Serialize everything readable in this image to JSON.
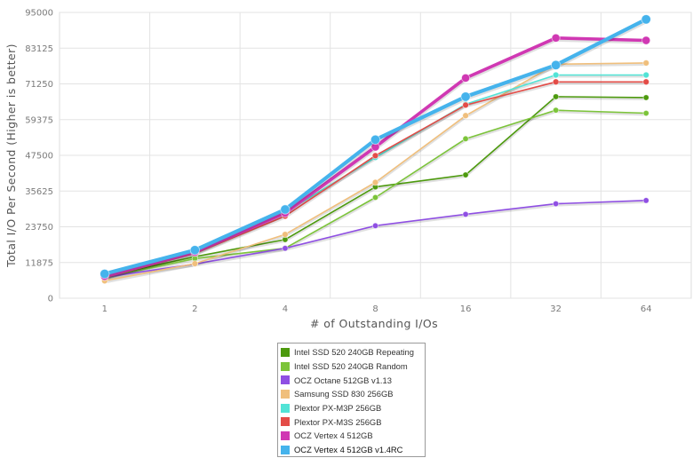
{
  "chart_data": {
    "type": "line",
    "title": "",
    "xlabel": "# of Outstanding I/Os",
    "ylabel": "Total I/O Per Second (Higher is better)",
    "categories": [
      "1",
      "2",
      "4",
      "8",
      "16",
      "32",
      "64"
    ],
    "yticks": [
      "0",
      "11875",
      "23750",
      "35625",
      "47500",
      "59375",
      "71250",
      "83125",
      "95000"
    ],
    "ylim": [
      0,
      95000
    ],
    "grid": true,
    "legend_position": "bottom-center",
    "series": [
      {
        "name": "Intel SSD 520 240GB Repeating",
        "color": "#4d9a0e",
        "values": [
          7200,
          13800,
          19500,
          37000,
          41000,
          67000,
          66700
        ]
      },
      {
        "name": "Intel SSD 520 240GB Random",
        "color": "#7cc43a",
        "values": [
          6800,
          13200,
          16600,
          33500,
          53000,
          62500,
          61500
        ]
      },
      {
        "name": "OCZ Octane 512GB v1.13",
        "color": "#8f4fe3",
        "values": [
          7000,
          11400,
          16600,
          24100,
          27900,
          31400,
          32500
        ]
      },
      {
        "name": "Samsung SSD 830 256GB",
        "color": "#f0bf7c",
        "values": [
          5800,
          11500,
          21200,
          38500,
          60700,
          77800,
          78200
        ]
      },
      {
        "name": "Plextor PX-M3P 256GB",
        "color": "#52e3d6",
        "values": [
          7100,
          15300,
          28500,
          46800,
          64500,
          74200,
          74200
        ]
      },
      {
        "name": "Plextor PX-M3S 256GB",
        "color": "#e34c47",
        "values": [
          6900,
          14900,
          27300,
          47400,
          64200,
          71900,
          71900
        ]
      },
      {
        "name": "OCZ Vertex 4 512GB",
        "color": "#d038b3",
        "values": [
          7300,
          15300,
          28300,
          50300,
          73200,
          86500,
          85700
        ]
      },
      {
        "name": "OCZ Vertex 4 512GB v1.4RC",
        "color": "#45b3ec",
        "values": [
          8100,
          16000,
          29500,
          52700,
          67000,
          77500,
          92700
        ]
      }
    ]
  }
}
